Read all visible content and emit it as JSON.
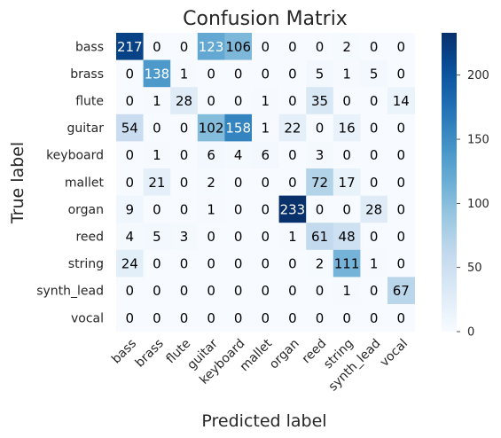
{
  "chart_data": {
    "type": "heatmap",
    "title": "Confusion Matrix",
    "xlabel": "Predicted label",
    "ylabel": "True label",
    "categories": [
      "bass",
      "brass",
      "flute",
      "guitar",
      "keyboard",
      "mallet",
      "organ",
      "reed",
      "string",
      "synth_lead",
      "vocal"
    ],
    "values": [
      [
        217,
        0,
        0,
        123,
        106,
        0,
        0,
        0,
        2,
        0,
        0
      ],
      [
        0,
        138,
        1,
        0,
        0,
        0,
        0,
        5,
        1,
        5,
        0
      ],
      [
        0,
        1,
        28,
        0,
        0,
        1,
        0,
        35,
        0,
        0,
        14
      ],
      [
        54,
        0,
        0,
        102,
        158,
        1,
        22,
        0,
        16,
        0,
        0
      ],
      [
        0,
        1,
        0,
        6,
        4,
        6,
        0,
        3,
        0,
        0,
        0
      ],
      [
        0,
        21,
        0,
        2,
        0,
        0,
        0,
        72,
        17,
        0,
        0
      ],
      [
        9,
        0,
        0,
        1,
        0,
        0,
        233,
        0,
        0,
        28,
        0
      ],
      [
        4,
        5,
        3,
        0,
        0,
        0,
        1,
        61,
        48,
        0,
        0
      ],
      [
        24,
        0,
        0,
        0,
        0,
        0,
        0,
        2,
        111,
        1,
        0
      ],
      [
        0,
        0,
        0,
        0,
        0,
        0,
        0,
        0,
        1,
        0,
        67
      ],
      [
        0,
        0,
        0,
        0,
        0,
        0,
        0,
        0,
        0,
        0,
        0
      ]
    ],
    "colormap": "Blues",
    "vmin": 0,
    "vmax": 233,
    "colorbar_ticks": [
      0,
      50,
      100,
      150,
      200
    ],
    "grid": false,
    "legend": "colorbar-right"
  }
}
